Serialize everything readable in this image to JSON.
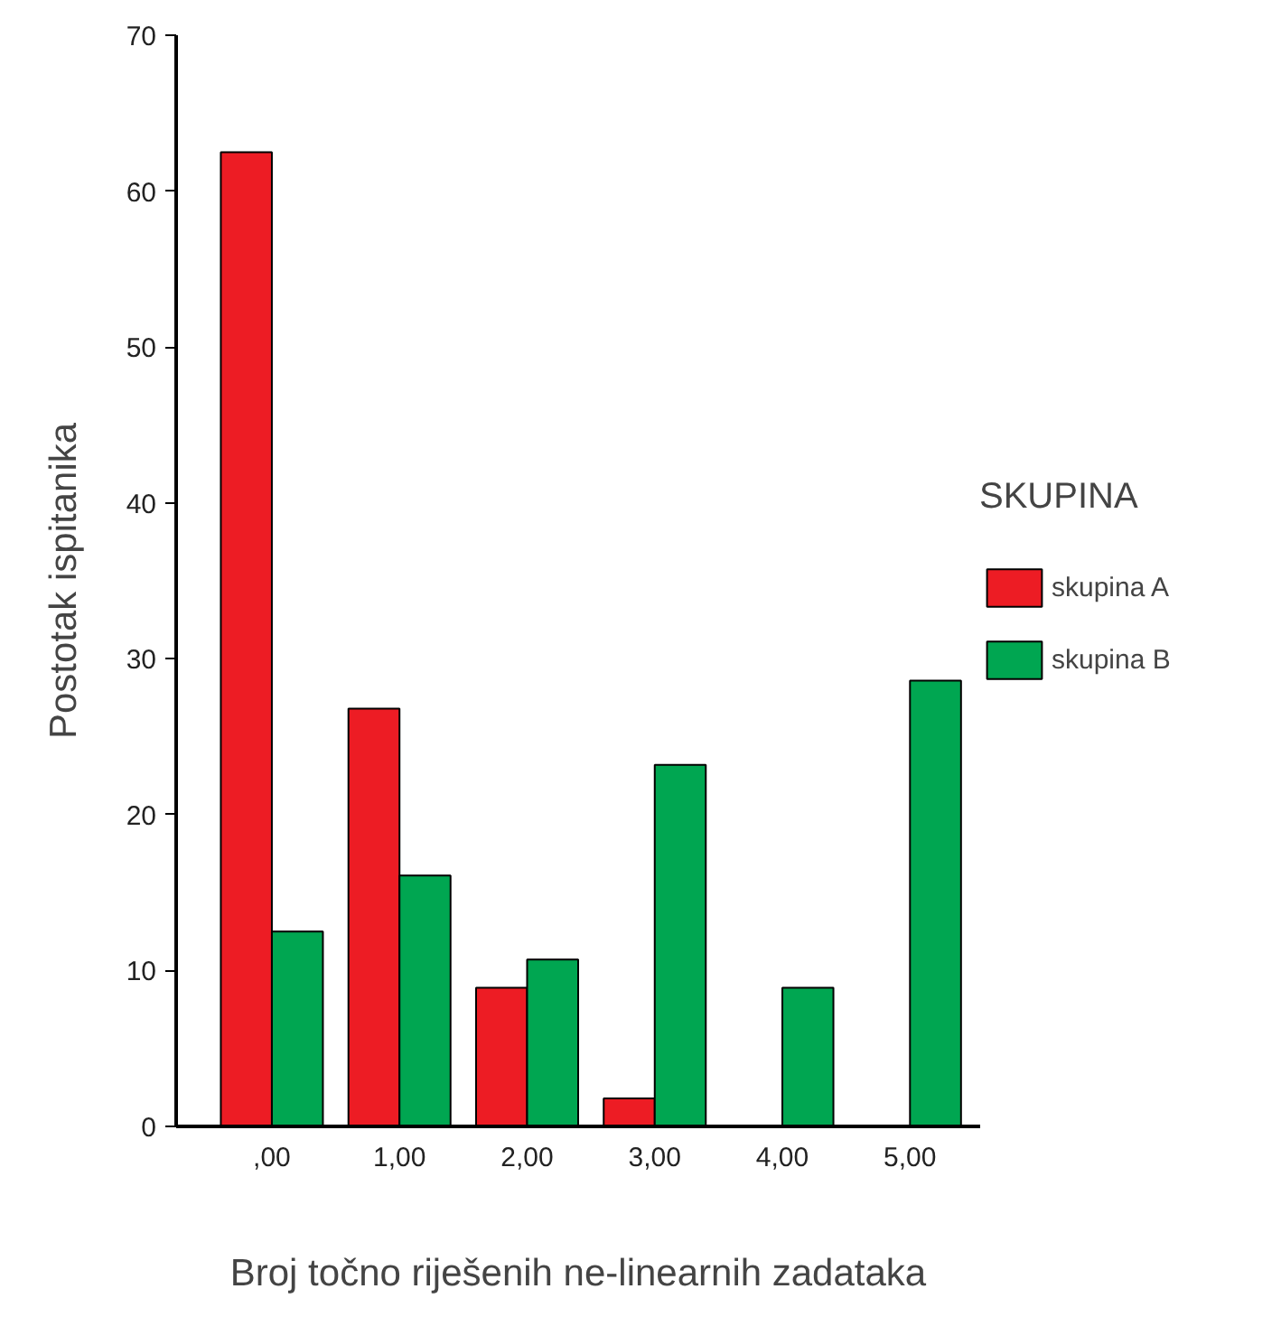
{
  "chart_data": {
    "type": "bar",
    "xlabel": "Broj točno riješenih ne-linearnih zadataka",
    "ylabel": "Postotak ispitanika",
    "legend_title": "SKUPINA",
    "legend": "right",
    "grid": false,
    "categories": [
      ",00",
      "1,00",
      "2,00",
      "3,00",
      "4,00",
      "5,00"
    ],
    "series": [
      {
        "name": "skupina A",
        "color": "#ed1c24",
        "values": [
          62.5,
          26.8,
          8.9,
          1.8,
          0,
          0
        ]
      },
      {
        "name": "skupina B",
        "color": "#00a651",
        "values": [
          12.5,
          16.1,
          10.7,
          23.2,
          8.9,
          28.6
        ]
      }
    ],
    "ylim": [
      0,
      70
    ],
    "yticks": [
      0,
      10,
      20,
      30,
      40,
      50,
      60,
      70
    ]
  }
}
